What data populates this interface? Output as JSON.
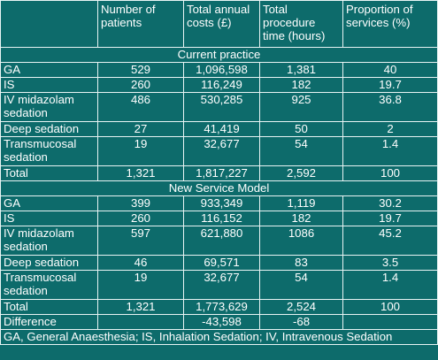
{
  "headers": [
    "",
    "Number of patients",
    "Total annual costs (£)",
    "Total procedure time (hours)",
    "Proportion of services (%)"
  ],
  "sections": [
    {
      "title": "Current practice",
      "rows": [
        {
          "label": "GA",
          "patients": "529",
          "costs": "1,096,598",
          "time": "1,381",
          "proportion": "40"
        },
        {
          "label": "IS",
          "patients": "260",
          "costs": "116,249",
          "time": "182",
          "proportion": "19.7"
        },
        {
          "label": "IV midazolam sedation",
          "patients": "486",
          "costs": "530,285",
          "time": "925",
          "proportion": "36.8"
        },
        {
          "label": "Deep sedation",
          "patients": "27",
          "costs": "41,419",
          "time": "50",
          "proportion": "2"
        },
        {
          "label": "Transmucosal sedation",
          "patients": "19",
          "costs": "32,677",
          "time": "54",
          "proportion": "1.4"
        }
      ],
      "total": {
        "label": "Total",
        "patients": "1,321",
        "costs": "1,817,227",
        "time": "2,592",
        "proportion": "100"
      }
    },
    {
      "title": "New Service Model",
      "rows": [
        {
          "label": "GA",
          "patients": "399",
          "costs": "933,349",
          "time": "1,119",
          "proportion": "30.2"
        },
        {
          "label": "IS",
          "patients": "260",
          "costs": "116,152",
          "time": "182",
          "proportion": "19.7"
        },
        {
          "label": "IV midazolam sedation",
          "patients": "597",
          "costs": "621,880",
          "time": "1086",
          "proportion": "45.2"
        },
        {
          "label": "Deep sedation",
          "patients": "46",
          "costs": "69,571",
          "time": "83",
          "proportion": "3.5"
        },
        {
          "label": "Transmucosal sedation",
          "patients": "19",
          "costs": "32,677",
          "time": "54",
          "proportion": "1.4"
        }
      ],
      "total": {
        "label": "Total",
        "patients": "1,321",
        "costs": "1,773,629",
        "time": "2,524",
        "proportion": "100"
      }
    }
  ],
  "difference": {
    "label": "Difference",
    "patients": "",
    "costs": "-43,598",
    "time": "-68",
    "proportion": ""
  },
  "footnote": "GA, General Anaesthesia; IS, Inhalation Sedation; IV, Intravenous Sedation"
}
